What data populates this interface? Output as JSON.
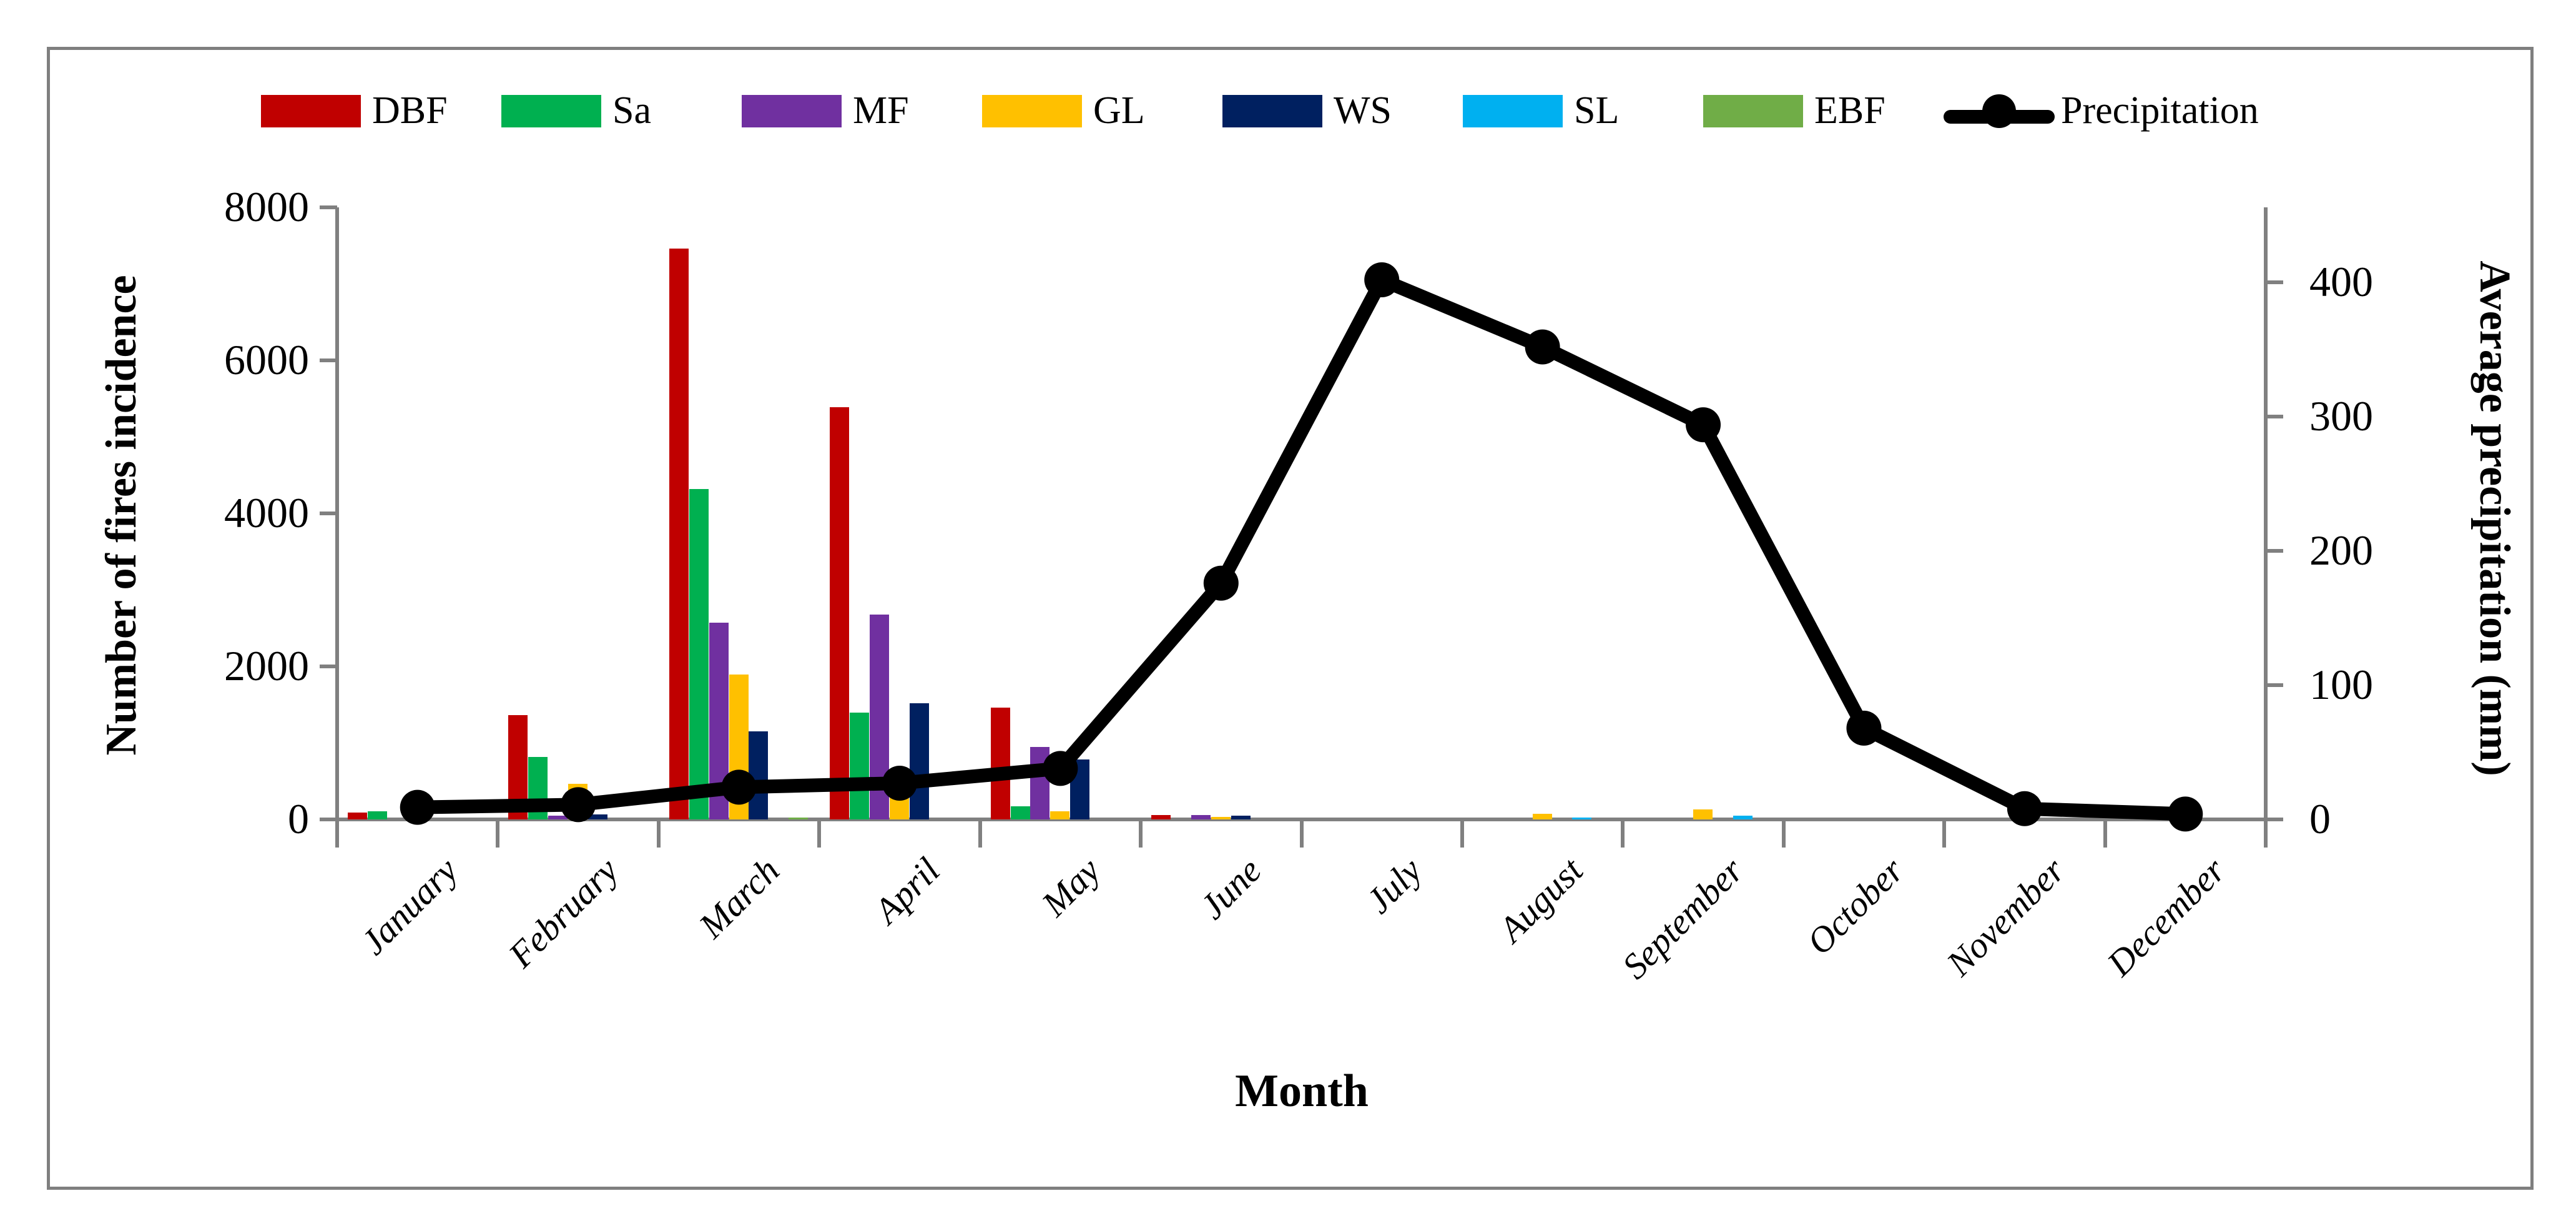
{
  "legend": {
    "items": [
      {
        "label": "DBF",
        "color": "#C00000"
      },
      {
        "label": "Sa",
        "color": "#00B050"
      },
      {
        "label": "MF",
        "color": "#7030A0"
      },
      {
        "label": "GL",
        "color": "#FFC000"
      },
      {
        "label": "WS",
        "color": "#002060"
      },
      {
        "label": "SL",
        "color": "#00B0F0"
      },
      {
        "label": "EBF",
        "color": "#70AD47"
      }
    ],
    "precipitation_label": "Precipitation",
    "precipitation_color": "#000000"
  },
  "axes": {
    "left": {
      "title": "Number of fires incidence",
      "ticks": [
        0,
        2000,
        4000,
        6000,
        8000
      ]
    },
    "right": {
      "title": "Average precipitation (mm)",
      "ticks": [
        0,
        100,
        200,
        300,
        400
      ]
    },
    "x": {
      "title": "Month"
    }
  },
  "chart_data": {
    "type": "combo-bar-line",
    "categories": [
      "January",
      "February",
      "March",
      "April",
      "May",
      "June",
      "July",
      "August",
      "September",
      "October",
      "November",
      "December"
    ],
    "series": [
      {
        "name": "DBF",
        "type": "bar",
        "color": "#C00000",
        "values": [
          90,
          1360,
          7460,
          5390,
          1460,
          60,
          0,
          0,
          0,
          0,
          0,
          0
        ]
      },
      {
        "name": "Sa",
        "type": "bar",
        "color": "#00B050",
        "values": [
          105,
          820,
          4320,
          1400,
          175,
          0,
          0,
          0,
          0,
          0,
          0,
          0
        ]
      },
      {
        "name": "MF",
        "type": "bar",
        "color": "#7030A0",
        "values": [
          0,
          45,
          2570,
          2680,
          950,
          60,
          0,
          0,
          0,
          0,
          0,
          0
        ]
      },
      {
        "name": "GL",
        "type": "bar",
        "color": "#FFC000",
        "values": [
          40,
          465,
          1890,
          400,
          110,
          35,
          0,
          70,
          130,
          0,
          0,
          0
        ]
      },
      {
        "name": "WS",
        "type": "bar",
        "color": "#002060",
        "values": [
          0,
          65,
          1150,
          1520,
          780,
          50,
          0,
          0,
          0,
          0,
          0,
          0
        ]
      },
      {
        "name": "SL",
        "type": "bar",
        "color": "#00B0F0",
        "values": [
          0,
          0,
          0,
          0,
          0,
          0,
          0,
          25,
          50,
          0,
          0,
          0
        ]
      },
      {
        "name": "EBF",
        "type": "bar",
        "color": "#70AD47",
        "values": [
          0,
          0,
          25,
          0,
          0,
          0,
          0,
          0,
          0,
          0,
          0,
          0
        ]
      }
    ],
    "line_series": {
      "name": "Precipitation",
      "type": "line",
      "axis": "right",
      "color": "#000000",
      "values": [
        9,
        11,
        24,
        27,
        38,
        176,
        402,
        352,
        294,
        68,
        8,
        4
      ]
    },
    "left_axis": {
      "label": "Number of fires incidence",
      "min": 0,
      "max": 8000,
      "major_unit": 2000
    },
    "right_axis": {
      "label": "Average precipitation (mm)",
      "min": 0,
      "max": 456,
      "labeled_ticks": [
        0,
        100,
        200,
        300,
        400
      ]
    },
    "x_axis": {
      "label": "Month"
    },
    "grid": false,
    "legend_position": "top"
  }
}
